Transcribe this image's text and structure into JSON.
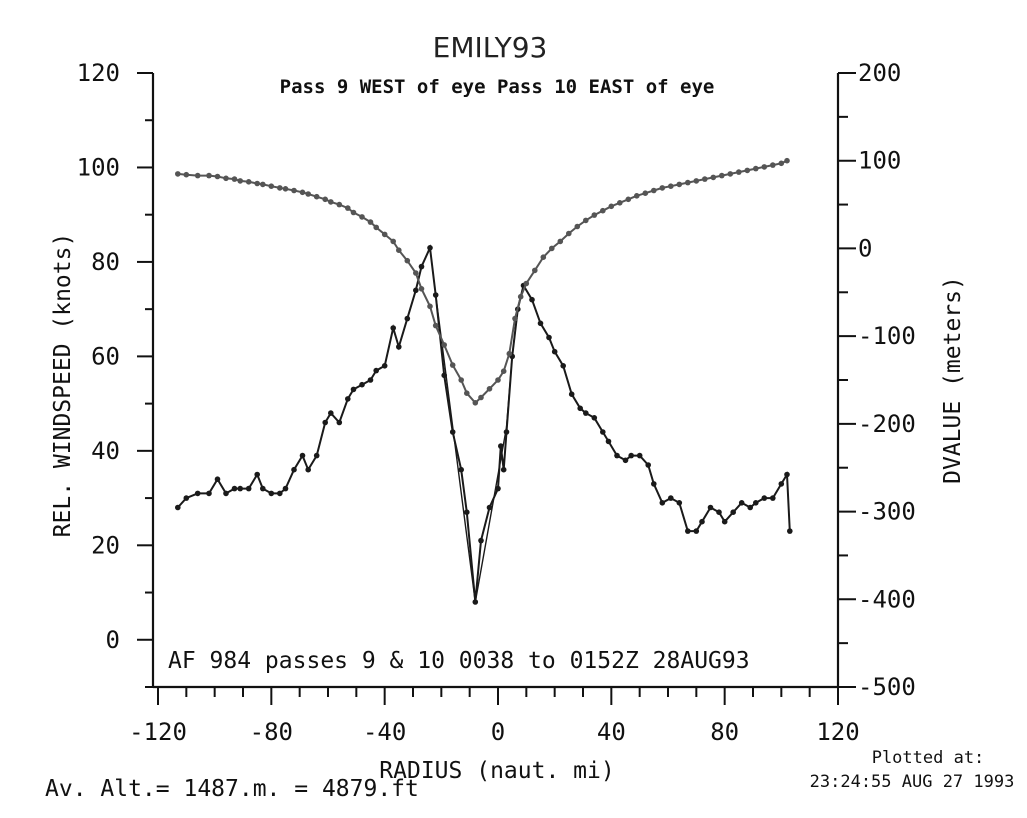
{
  "chart_data": {
    "type": "line",
    "title": "EMILY93",
    "subtitle": "Pass  9 WEST of eye Pass 10 EAST of eye",
    "xlabel": "RADIUS (naut. mi)",
    "ylabel": "REL. WINDSPEED (knots)",
    "y2label": "DVALUE (meters)",
    "xlim": [
      -120,
      120
    ],
    "ylim": [
      -10,
      120
    ],
    "y2lim": [
      -500,
      200
    ],
    "xticks": [
      "-120",
      "-80",
      "-40",
      "0",
      "40",
      "80",
      "120"
    ],
    "yticks": [
      "120",
      "100",
      "80",
      "60",
      "40",
      "20",
      "0"
    ],
    "y2ticks": [
      "200",
      "100",
      "0",
      "-100",
      "-200",
      "-300",
      "-400",
      "-500"
    ],
    "annotation": "AF 984   passes   9 & 10   0038 to 0152Z 28AUG93",
    "grid": false,
    "series": [
      {
        "axis": "left",
        "color": "#1a1a1a",
        "marker": "circle",
        "x": [
          -113,
          -110,
          -106,
          -102,
          -99,
          -96,
          -93,
          -91,
          -88,
          -85,
          -83,
          -80,
          -77,
          -75,
          -72,
          -69,
          -67,
          -64,
          -61,
          -59,
          -56,
          -53,
          -51,
          -48,
          -45,
          -43,
          -40,
          -37,
          -35,
          -32,
          -29,
          -27,
          -24,
          -22,
          -19,
          -16,
          -13,
          -11,
          -8,
          -6,
          -3,
          0,
          1,
          2,
          3,
          5,
          7,
          9,
          12,
          15,
          18,
          20,
          23,
          26,
          29,
          31,
          34,
          37,
          39,
          42,
          45,
          47,
          50,
          53,
          55,
          58,
          61,
          64,
          67,
          70,
          72,
          75,
          78,
          80,
          83,
          86,
          89,
          91,
          94,
          97,
          100,
          102,
          103
        ],
        "values": [
          28,
          30,
          31,
          31,
          34,
          31,
          32,
          32,
          32,
          35,
          32,
          31,
          31,
          32,
          36,
          39,
          36,
          39,
          46,
          48,
          46,
          51,
          53,
          54,
          55,
          57,
          58,
          66,
          62,
          68,
          74,
          79,
          83,
          73,
          56,
          44,
          36,
          27,
          8,
          21,
          28,
          32,
          41,
          36,
          44,
          60,
          70,
          75,
          72,
          67,
          64,
          61,
          58,
          52,
          49,
          48,
          47,
          44,
          42,
          39,
          38,
          39,
          39,
          37,
          33,
          29,
          30,
          29,
          23,
          23,
          25,
          28,
          27,
          25,
          27,
          29,
          28,
          29,
          30,
          30,
          33,
          35,
          23
        ]
      },
      {
        "axis": "left",
        "color": "#1a1a1a",
        "marker": "none",
        "x": [
          -22,
          -8,
          3,
          5,
          7
        ],
        "values": [
          73,
          8,
          45,
          60,
          70
        ]
      },
      {
        "axis": "right",
        "color": "#555555",
        "marker": "circle",
        "x": [
          -113,
          -110,
          -106,
          -102,
          -99,
          -96,
          -93,
          -91,
          -88,
          -85,
          -83,
          -80,
          -77,
          -75,
          -72,
          -69,
          -67,
          -64,
          -61,
          -59,
          -56,
          -53,
          -51,
          -48,
          -45,
          -43,
          -40,
          -37,
          -35,
          -32,
          -29,
          -27,
          -24,
          -22,
          -19,
          -16,
          -13,
          -11,
          -8,
          -6,
          -3,
          0,
          2,
          4,
          6,
          8,
          10,
          13,
          16,
          19,
          22,
          25,
          28,
          31,
          34,
          37,
          40,
          43,
          46,
          49,
          52,
          55,
          58,
          61,
          64,
          67,
          70,
          73,
          76,
          79,
          82,
          85,
          88,
          91,
          94,
          97,
          100,
          102
        ],
        "values": [
          85,
          84,
          83,
          83,
          82,
          80,
          79,
          77,
          76,
          74,
          73,
          71,
          69,
          68,
          66,
          64,
          62,
          59,
          56,
          53,
          50,
          46,
          41,
          36,
          30,
          24,
          16,
          8,
          -2,
          -14,
          -28,
          -46,
          -66,
          -88,
          -110,
          -133,
          -150,
          -165,
          -176,
          -170,
          -160,
          -150,
          -140,
          -120,
          -80,
          -55,
          -40,
          -25,
          -10,
          0,
          8,
          17,
          25,
          32,
          38,
          43,
          48,
          52,
          56,
          60,
          63,
          66,
          69,
          71,
          73,
          75,
          77,
          79,
          81,
          83,
          85,
          87,
          89,
          91,
          93,
          95,
          97,
          100
        ]
      }
    ]
  },
  "footer": {
    "altitude": "Av. Alt.= 1487.m. =   4879.ft",
    "plotted_at_label": "Plotted at:",
    "plotted_at_value": "23:24:55 AUG 27 1993"
  }
}
